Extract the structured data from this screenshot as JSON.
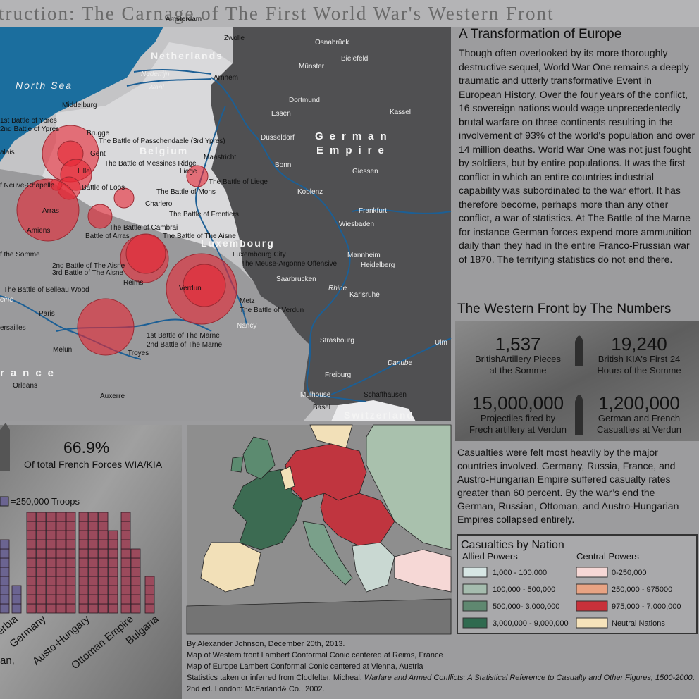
{
  "header": {
    "title": "truction: The Carnage of The First World War's Western Front"
  },
  "map": {
    "labels": [
      "Amsterdam",
      "Zwolle",
      "Netherlands",
      "Osnabrück",
      "Bielefeld",
      "Münster",
      "Nederrijn",
      "Waal",
      "Arnhem",
      "North Sea",
      "Middelburg",
      "Dortmund",
      "Essen",
      "Kassel",
      "1st Battle of Ypres",
      "2nd Battle of Ypres",
      "Brugge",
      "The Battle of Passchendaele (3rd Ypres)",
      "Gent",
      "German",
      "Empire",
      "Düsseldorf",
      "Belgium",
      "Maastricht",
      "The Battle of Messines Ridge",
      "Bonn",
      "Lille",
      "Liege",
      "Giessen",
      "Battle of Loos",
      "f Neuve-Chapelle",
      "The Battle of Liege",
      "The Battle of Mons",
      "Koblenz",
      "Charleroi",
      "Arras",
      "Frankfurt",
      "The Battle of Frontiers",
      "Wiesbaden",
      "Amiens",
      "The Battle of Cambrai",
      "Battle of Arras",
      "The Battle of The Aisne",
      "Luxembourg",
      "Luxembourg City",
      "Mannheim",
      "Heidelberg",
      "The Meuse-Argonne Offensive",
      "2nd Battle of The Aisne",
      "3rd Battle of The Aisne",
      "Saarbrucken",
      "Reims",
      "Verdun",
      "The Battle of Belleau Wood",
      "Rhine",
      "Karlsruhe",
      "Metz",
      "The Battle of Verdun",
      "Paris",
      "Nancy",
      "Ulm",
      "Strasbourg",
      "1st Battle of The Marne",
      "2nd Battle of The Marne",
      "Melun",
      "Troyes",
      "Danube",
      "rance",
      "Freiburg",
      "Orleans",
      "Auxerre",
      "Mulhouse",
      "Schaffhausen",
      "Basel",
      "Switzerland",
      "f the Somme",
      "alais",
      "ersailles",
      "eine"
    ]
  },
  "article": {
    "heading": "A Transformation of Europe",
    "body": "Though often overlooked by its more thoroughly destructive sequel, World War One remains a deeply traumatic and utterly transformative Event in European History. Over the four years of the conflict, 16 sovereign nations would wage unprecedentedly brutal warfare on three continents resulting in the involvement of 93% of the world's population and over 14 million deaths. World War One was not just fought by soldiers, but by entire populations. It was the first conflict in which an entire countries industrial capability was subordinated to the war effort. It has therefore become, perhaps more than any other conflict, a war of statistics. At The Battle of the Marne for instance German forces expend more ammunition daily than they had in the entire Franco-Prussian war of 1870. The terrifying statistics do not end there."
  },
  "numbers": {
    "heading": "The Western Front by The Numbers",
    "stats": [
      {
        "value": "1,537",
        "label": "BritishArtillery Pieces at the Somme"
      },
      {
        "value": "19,240",
        "label": "British KIA's First 24 Hours of the Somme"
      },
      {
        "value": "15,000,000",
        "label": "Projectiles fired by Frech artillery at Verdun"
      },
      {
        "value": "1,200,000",
        "label": "German and French Casualties at Verdun"
      }
    ]
  },
  "casualties_text": "Casualties were felt most heavily by the major countries involved. Germany, Russia, France, and Austro-Hungarian Empire suffered casualty rates greater than 60 percent. By the war’s end the German, Russian, Ottoman, and Austro-Hungarian Empires collapsed entirely.",
  "legend": {
    "title": "Casualties by Nation",
    "allied": {
      "heading": "Allied Powers",
      "items": [
        {
          "label": "1,000 - 100,000",
          "color": "#d7e6e4"
        },
        {
          "label": "100,000 - 500,000",
          "color": "#a5bcae"
        },
        {
          "label": "500,000- 3,000,000",
          "color": "#5f8870"
        },
        {
          "label": "3,000,000 - 9,000,000",
          "color": "#2f6a4f"
        }
      ]
    },
    "central": {
      "heading": "Central Powers",
      "items": [
        {
          "label": "0-250,000",
          "color": "#f6d8d6"
        },
        {
          "label": "250,000 - 975000",
          "color": "#e8a383"
        },
        {
          "label": "975,000 - 7,000,000",
          "color": "#c8313a"
        },
        {
          "label": "Neutral Nations",
          "color": "#f6e3bb"
        }
      ]
    }
  },
  "left_panel": {
    "percent": "66.9%",
    "caption": "Of total French Forces WIA/KIA",
    "key": "=250,000 Troops",
    "labels": [
      "erbia",
      "Germany",
      "Austo-Hungary",
      "Ottoman Empire",
      "Bulgaria",
      "an,"
    ],
    "columns": [
      {
        "count": 8,
        "color": "#6b6491"
      },
      {
        "count": 3,
        "color": "#6b6491"
      },
      {
        "count": 11,
        "color": "#9b4a5c"
      },
      {
        "count": 11,
        "color": "#9b4a5c"
      },
      {
        "count": 11,
        "color": "#9b4a5c"
      },
      {
        "count": 11,
        "color": "#9b4a5c"
      },
      {
        "count": 11,
        "color": "#9b4a5c"
      },
      {
        "count": 11,
        "color": "#9b4a5c"
      },
      {
        "count": 11,
        "color": "#9b4a5c"
      },
      {
        "count": 11,
        "color": "#9b4a5c"
      },
      {
        "count": 9,
        "color": "#9b4a5c"
      },
      {
        "count": 11,
        "color": "#9b4a5c"
      },
      {
        "count": 7,
        "color": "#9b4a5c"
      },
      {
        "count": 4,
        "color": "#9b4a5c"
      }
    ]
  },
  "credits": {
    "lines": [
      "By Alexander Johnson, December 20th, 2013.",
      "Map of Western front Lambert Conformal Conic centered at Reims, France",
      "Map of Europe Lambert Conformal Conic centered at Vienna, Austria"
    ],
    "citation": {
      "plain": "Statistics taken or inferred from Clodfelter, Micheal. ",
      "italic": "Warfare and Armed Conflicts: A Statistical Reference to Casualty and Other Figures, 1500-2000",
      "rest": ". 2nd ed. London: McFarland& Co., 2002."
    }
  }
}
